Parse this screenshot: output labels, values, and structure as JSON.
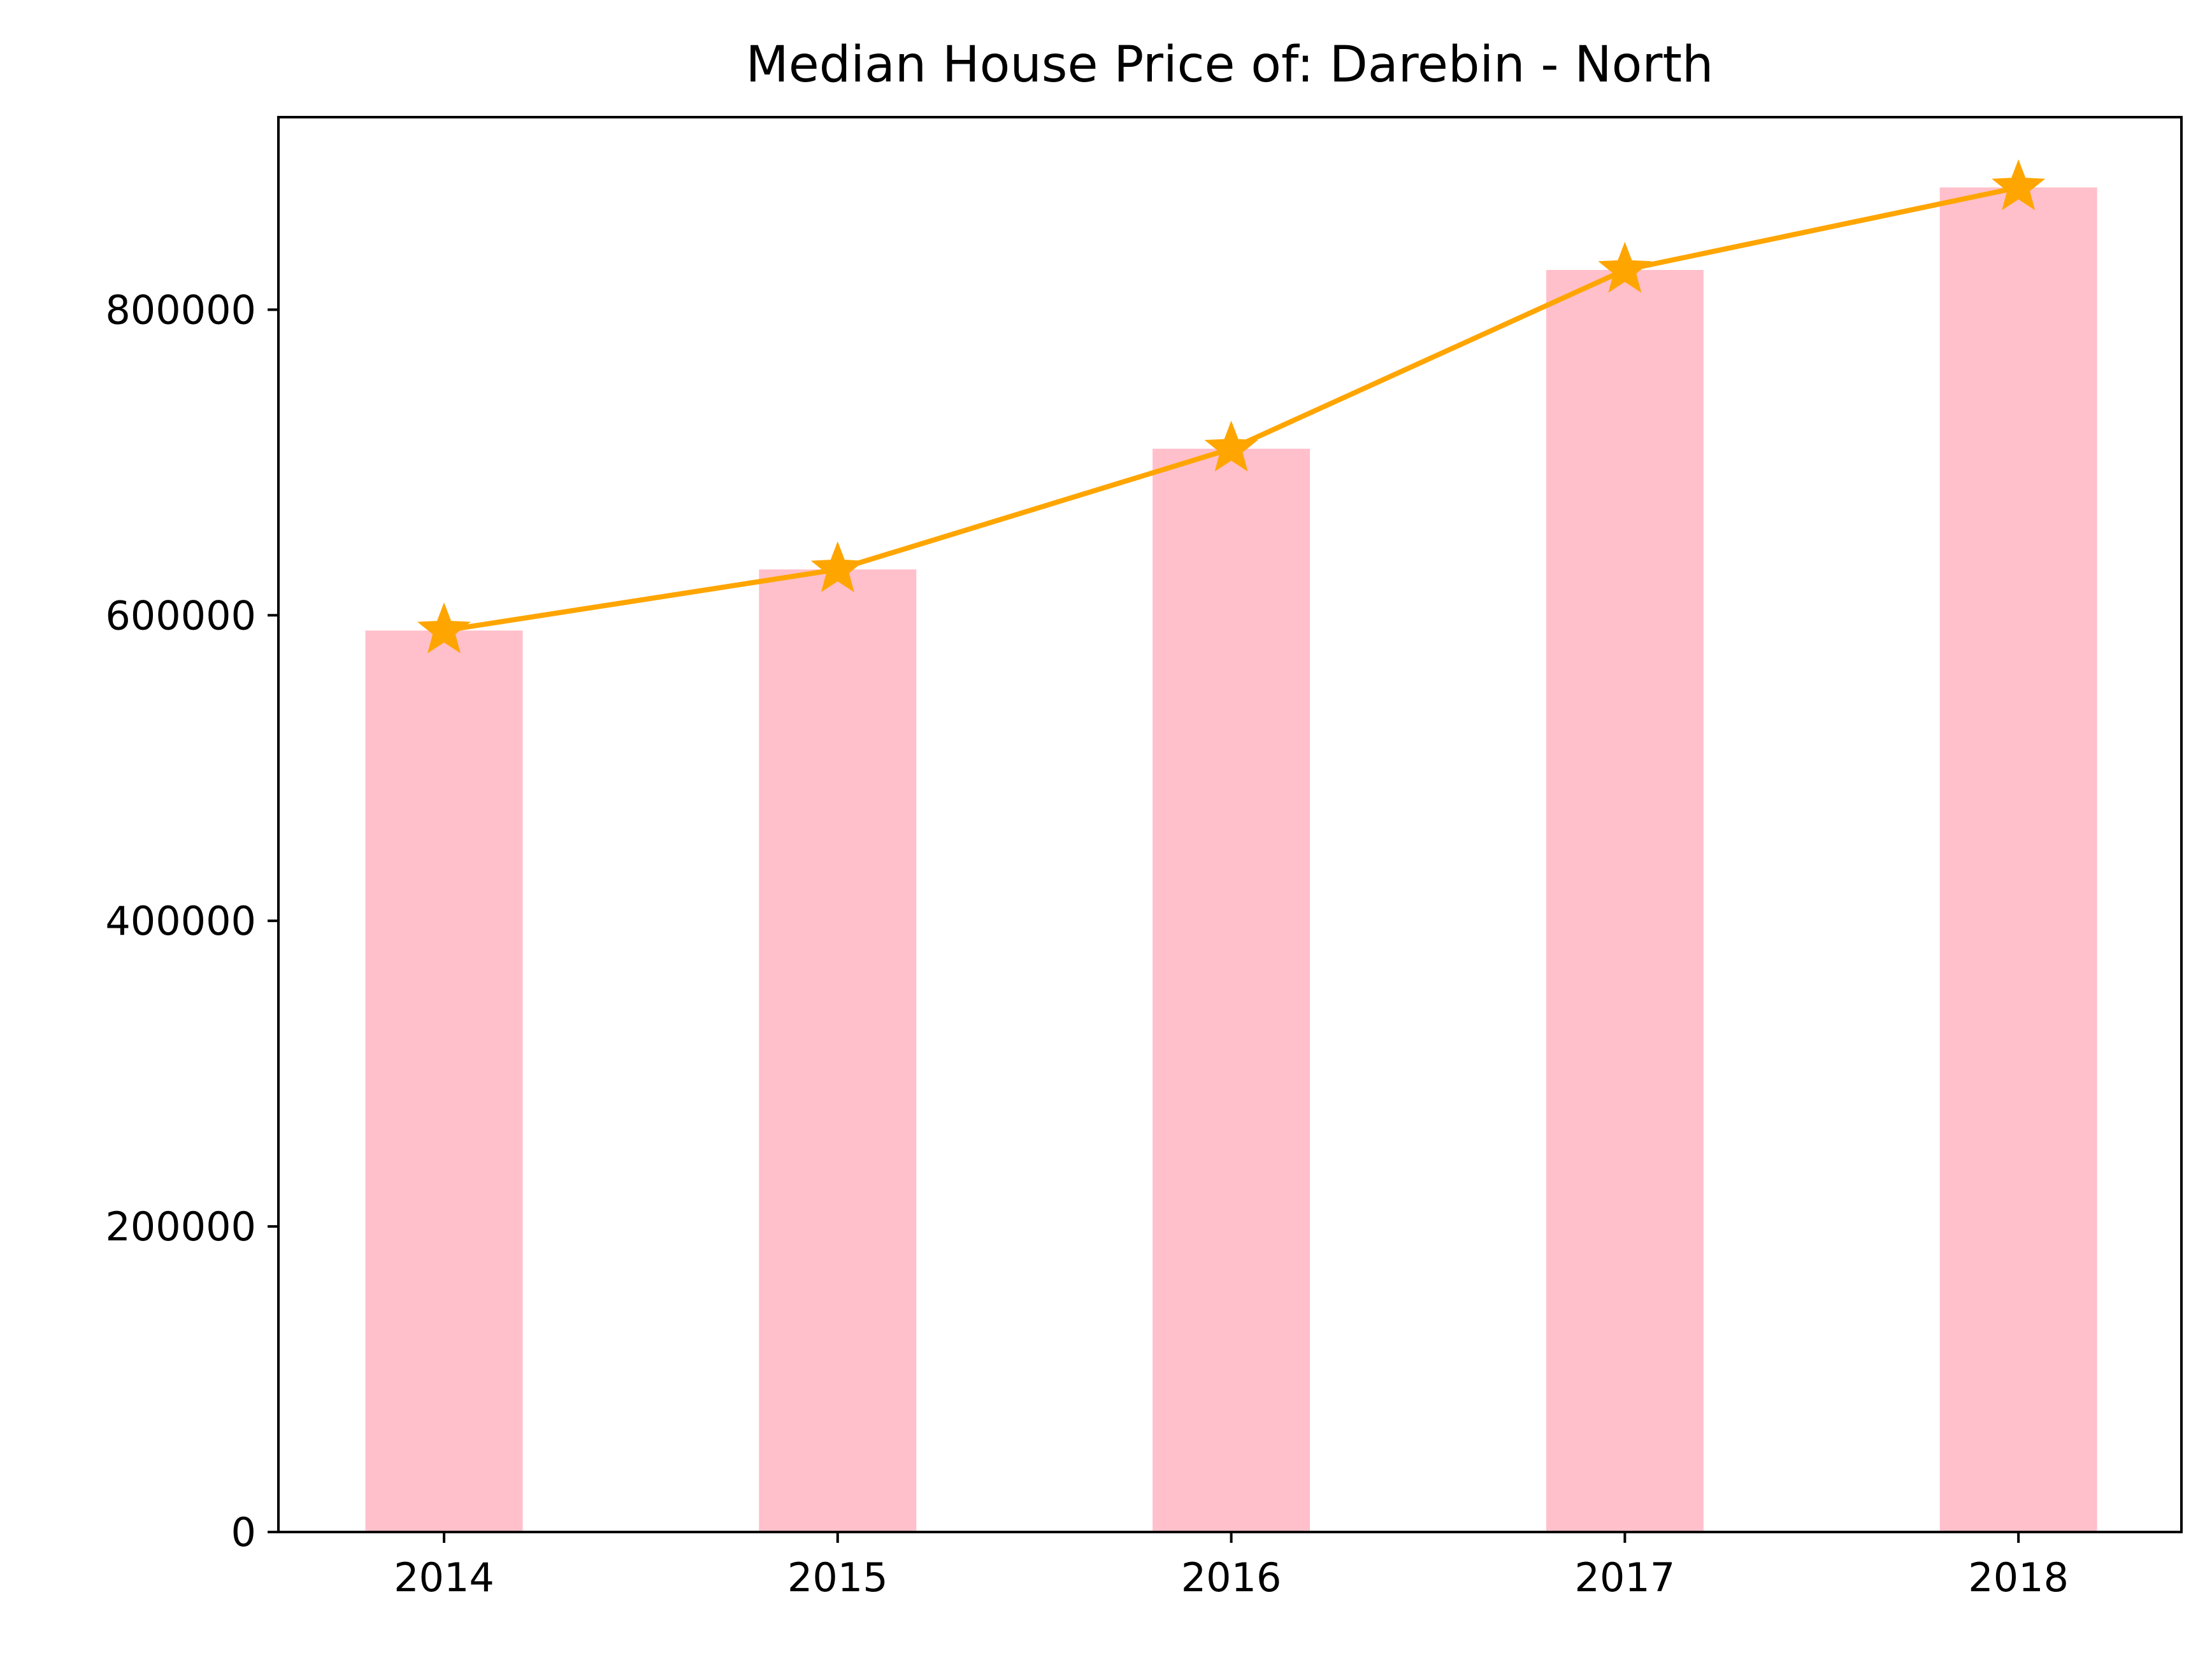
{
  "chart_data": {
    "type": "bar",
    "title": "Median House Price of: Darebin - North",
    "xlabel": "",
    "ylabel": "",
    "categories": [
      "2014",
      "2015",
      "2016",
      "2017",
      "2018"
    ],
    "series": [
      {
        "kind": "bar",
        "values": [
          590000,
          630000,
          709000,
          826000,
          880000
        ],
        "color": "#ffc0cb"
      },
      {
        "kind": "line",
        "marker": "star",
        "values": [
          590000,
          630000,
          709000,
          826000,
          880000
        ],
        "color": "#ffa500"
      }
    ],
    "yticks": [
      "0",
      "200000",
      "400000",
      "600000",
      "800000"
    ],
    "ylim": [
      0,
      926000
    ],
    "grid": false,
    "legend": "none"
  }
}
